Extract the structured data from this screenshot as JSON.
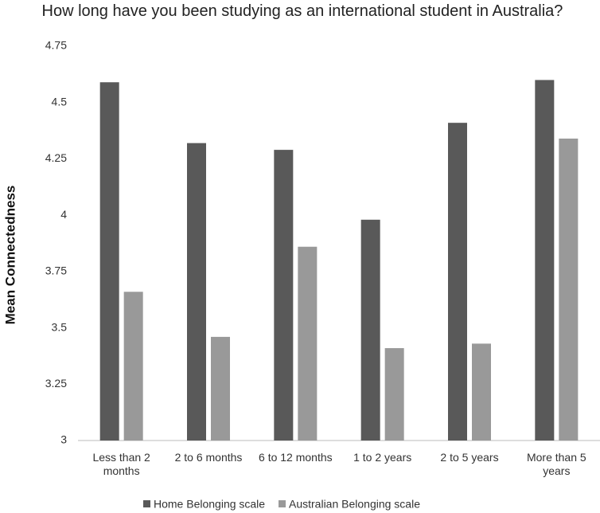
{
  "chart_data": {
    "type": "bar",
    "title": "How long have you been studying as an international student in Australia?",
    "y_label": "Mean Connectedness",
    "categories": [
      "Less than 2 months",
      "2 to 6 months",
      "6 to 12 months",
      "1 to 2 years",
      "2 to 5 years",
      "More than 5 years"
    ],
    "series": [
      {
        "name": "Home Belonging scale",
        "color": "#595959",
        "values": [
          4.59,
          4.32,
          4.29,
          3.98,
          4.41,
          4.6
        ]
      },
      {
        "name": "Australian Belonging scale",
        "color": "#999999",
        "values": [
          3.66,
          3.46,
          3.86,
          3.41,
          3.43,
          4.34
        ]
      }
    ],
    "ylim": [
      3,
      4.75
    ],
    "yticks": [
      3,
      3.25,
      3.5,
      3.75,
      4,
      4.25,
      4.5,
      4.75
    ],
    "grid": false,
    "legend": "bottom"
  }
}
